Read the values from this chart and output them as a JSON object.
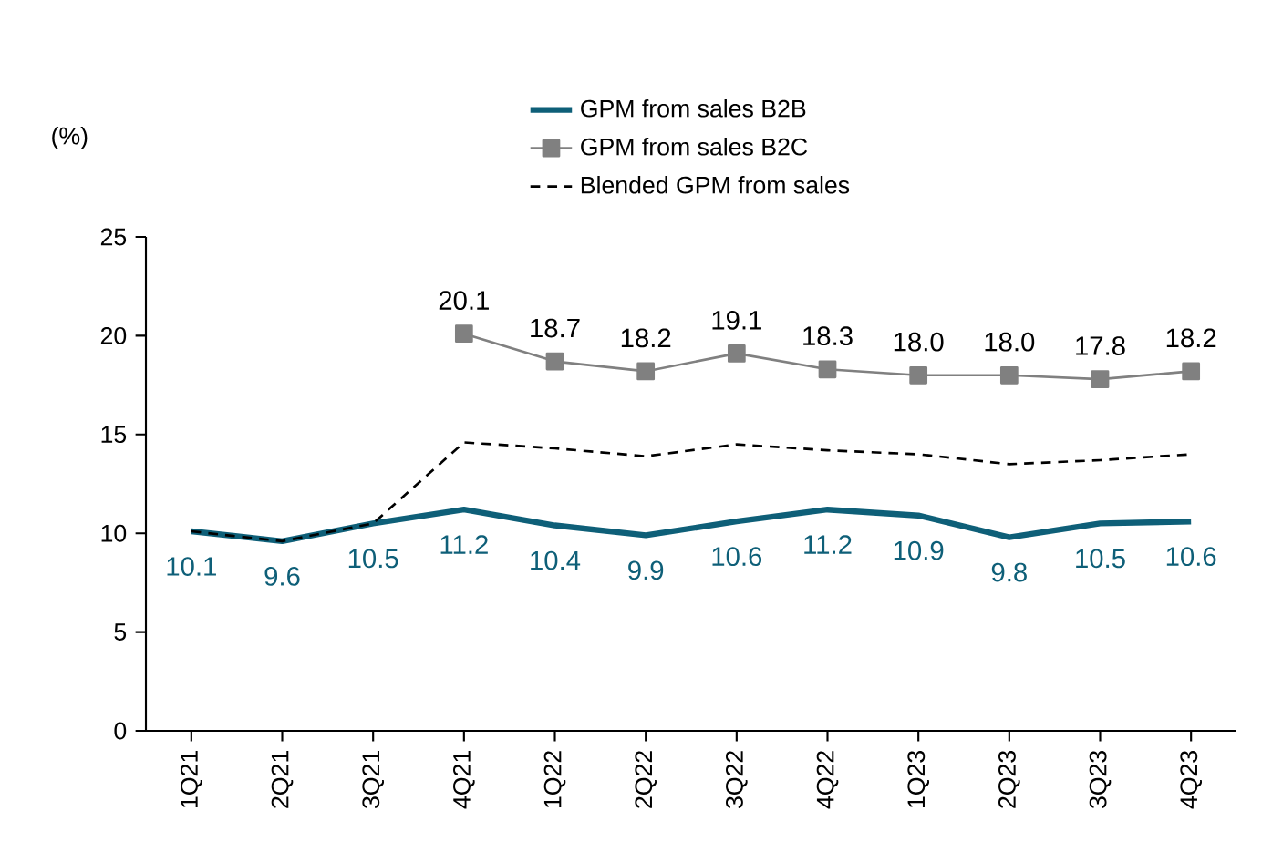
{
  "chart_data": {
    "type": "line",
    "ylabel": "(%)",
    "categories": [
      "1Q21",
      "2Q21",
      "3Q21",
      "4Q21",
      "1Q22",
      "2Q22",
      "3Q22",
      "4Q22",
      "1Q23",
      "2Q23",
      "3Q23",
      "4Q23"
    ],
    "series": [
      {
        "name": "GPM from sales B2B",
        "color": "#0e5f78",
        "marker": "none",
        "line_style": "solid",
        "values": [
          10.1,
          9.6,
          10.5,
          11.2,
          10.4,
          9.9,
          10.6,
          11.2,
          10.9,
          9.8,
          10.5,
          10.6
        ],
        "value_labels": [
          "10.1",
          "9.6",
          "10.5",
          "11.2",
          "10.4",
          "9.9",
          "10.6",
          "11.2",
          "10.9",
          "9.8",
          "10.5",
          "10.6"
        ]
      },
      {
        "name": "GPM from sales B2C",
        "color": "#808080",
        "marker": "square",
        "line_style": "solid",
        "values": [
          null,
          null,
          null,
          20.1,
          18.7,
          18.2,
          19.1,
          18.3,
          18.0,
          18.0,
          17.8,
          18.2
        ],
        "value_labels": [
          null,
          null,
          null,
          "20.1",
          "18.7",
          "18.2",
          "19.1",
          "18.3",
          "18.0",
          "18.0",
          "17.8",
          "18.2"
        ]
      },
      {
        "name": "Blended GPM from sales",
        "color": "#000000",
        "marker": "none",
        "line_style": "dashed",
        "values": [
          10.1,
          9.6,
          10.5,
          14.6,
          14.3,
          13.9,
          14.5,
          14.2,
          14.0,
          13.5,
          13.7,
          14.0
        ]
      }
    ],
    "ylim": [
      0,
      25
    ],
    "yticks": [
      0,
      5,
      10,
      15,
      20,
      25
    ],
    "grid": false,
    "legend": "top"
  }
}
